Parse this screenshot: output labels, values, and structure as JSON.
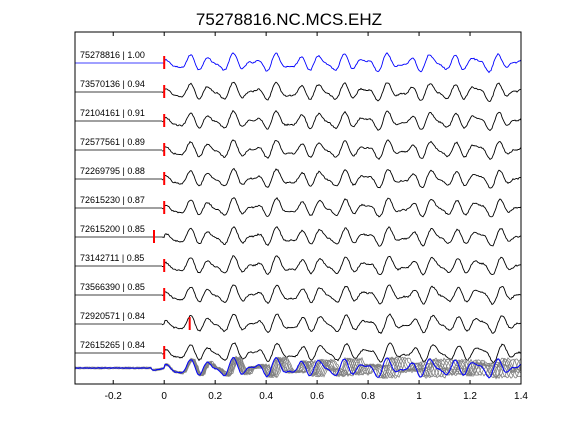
{
  "chart_data": {
    "type": "line",
    "title": "75278816.NC.MCS.EHZ",
    "xlim": [
      -0.35,
      1.4
    ],
    "xticks": [
      -0.2,
      0,
      0.2,
      0.4,
      0.6,
      0.8,
      1,
      1.2,
      1.4
    ],
    "xtick_labels": [
      "-0.2",
      "0",
      "0.2",
      "0.4",
      "0.6",
      "0.8",
      "1",
      "1.2",
      "1.4"
    ],
    "grid": false,
    "legend": "none",
    "colors": {
      "reference": "#0000ff",
      "trace": "#000000",
      "pick": "#ff0000",
      "stack": "#808080",
      "axis": "#000000"
    },
    "series": [
      {
        "name": "75278816 | 1.00",
        "pick_time": 0.0,
        "color": "#0000ff"
      },
      {
        "name": "73570136 | 0.94",
        "pick_time": 0.0,
        "color": "#000000"
      },
      {
        "name": "72104161 | 0.91",
        "pick_time": 0.0,
        "color": "#000000"
      },
      {
        "name": "72577561 | 0.89",
        "pick_time": 0.0,
        "color": "#000000"
      },
      {
        "name": "72269795 | 0.88",
        "pick_time": 0.0,
        "color": "#000000"
      },
      {
        "name": "72615230 | 0.87",
        "pick_time": 0.0,
        "color": "#000000"
      },
      {
        "name": "72615200 | 0.85",
        "pick_time": -0.04,
        "color": "#000000"
      },
      {
        "name": "73142711 | 0.85",
        "pick_time": 0.0,
        "color": "#000000"
      },
      {
        "name": "73566390 | 0.85",
        "pick_time": 0.0,
        "color": "#000000"
      },
      {
        "name": "72920571 | 0.84",
        "pick_time": 0.1,
        "color": "#000000"
      },
      {
        "name": "72615265 | 0.84",
        "pick_time": 0.0,
        "color": "#000000"
      }
    ],
    "stack": {
      "overlay_count": 10,
      "reference_color": "#0000ff",
      "overlay_color": "#808080"
    }
  }
}
